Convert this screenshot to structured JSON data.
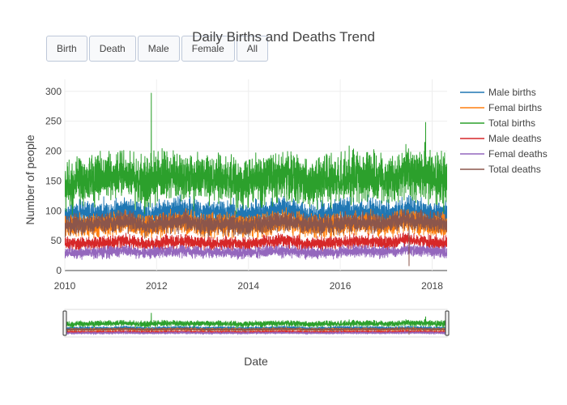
{
  "buttons": [
    {
      "label": "Birth"
    },
    {
      "label": "Death"
    },
    {
      "label": "Male"
    },
    {
      "label": "Female"
    },
    {
      "label": "All"
    }
  ],
  "chart_data": {
    "type": "line",
    "title": "Daily Births and Deaths Trend",
    "xlabel": "Date",
    "ylabel": "Number of people",
    "x_range": [
      "2010-01-01",
      "2018-04-30"
    ],
    "ylim": [
      0,
      320
    ],
    "yticks": [
      0,
      50,
      100,
      150,
      200,
      250,
      300
    ],
    "xticks": [
      "2010",
      "2012",
      "2014",
      "2016",
      "2018"
    ],
    "grid": true,
    "legend_position": "right",
    "has_range_slider": true,
    "series": [
      {
        "name": "Male births",
        "color": "#1f77b4",
        "mean": 92,
        "spread": 26,
        "values": [
          92,
          96,
          95,
          104,
          90,
          99,
          102,
          94,
          97,
          93,
          98,
          103,
          92,
          95,
          99,
          100,
          94,
          101,
          96,
          93
        ]
      },
      {
        "name": "Femal births",
        "color": "#ff7f0e",
        "mean": 72,
        "spread": 24,
        "values": [
          74,
          73,
          76,
          80,
          72,
          79,
          81,
          75,
          77,
          74,
          78,
          83,
          76,
          75,
          79,
          80,
          74,
          83,
          77,
          74
        ]
      },
      {
        "name": "Total births",
        "color": "#2ca02c",
        "mean": 145,
        "spread": 52,
        "values": [
          140,
          150,
          158,
          163,
          146,
          160,
          158,
          150,
          152,
          146,
          154,
          160,
          148,
          150,
          156,
          158,
          148,
          166,
          160,
          150
        ]
      },
      {
        "name": "Male deaths",
        "color": "#d62728",
        "mean": 44,
        "spread": 14,
        "values": [
          44,
          45,
          46,
          50,
          43,
          47,
          49,
          45,
          46,
          44,
          47,
          50,
          45,
          45,
          48,
          49,
          46,
          52,
          48,
          45
        ]
      },
      {
        "name": "Femal deaths",
        "color": "#9467bd",
        "mean": 30,
        "spread": 12,
        "values": [
          28,
          30,
          31,
          34,
          29,
          32,
          33,
          30,
          31,
          29,
          32,
          33,
          30,
          30,
          32,
          33,
          31,
          35,
          33,
          30
        ]
      },
      {
        "name": "Total deaths",
        "color": "#8c564b",
        "mean": 75,
        "spread": 20,
        "values": [
          75,
          77,
          79,
          84,
          74,
          80,
          82,
          76,
          78,
          74,
          80,
          83,
          77,
          76,
          80,
          81,
          78,
          86,
          82,
          77
        ]
      }
    ],
    "peaks": [
      {
        "series": "Total births",
        "date": "2011-11-20",
        "value": 297
      },
      {
        "series": "Total births",
        "date": "2017-11-10",
        "value": 248
      },
      {
        "series": "Total deaths",
        "date": "2017-07-01",
        "value": 8
      }
    ]
  }
}
